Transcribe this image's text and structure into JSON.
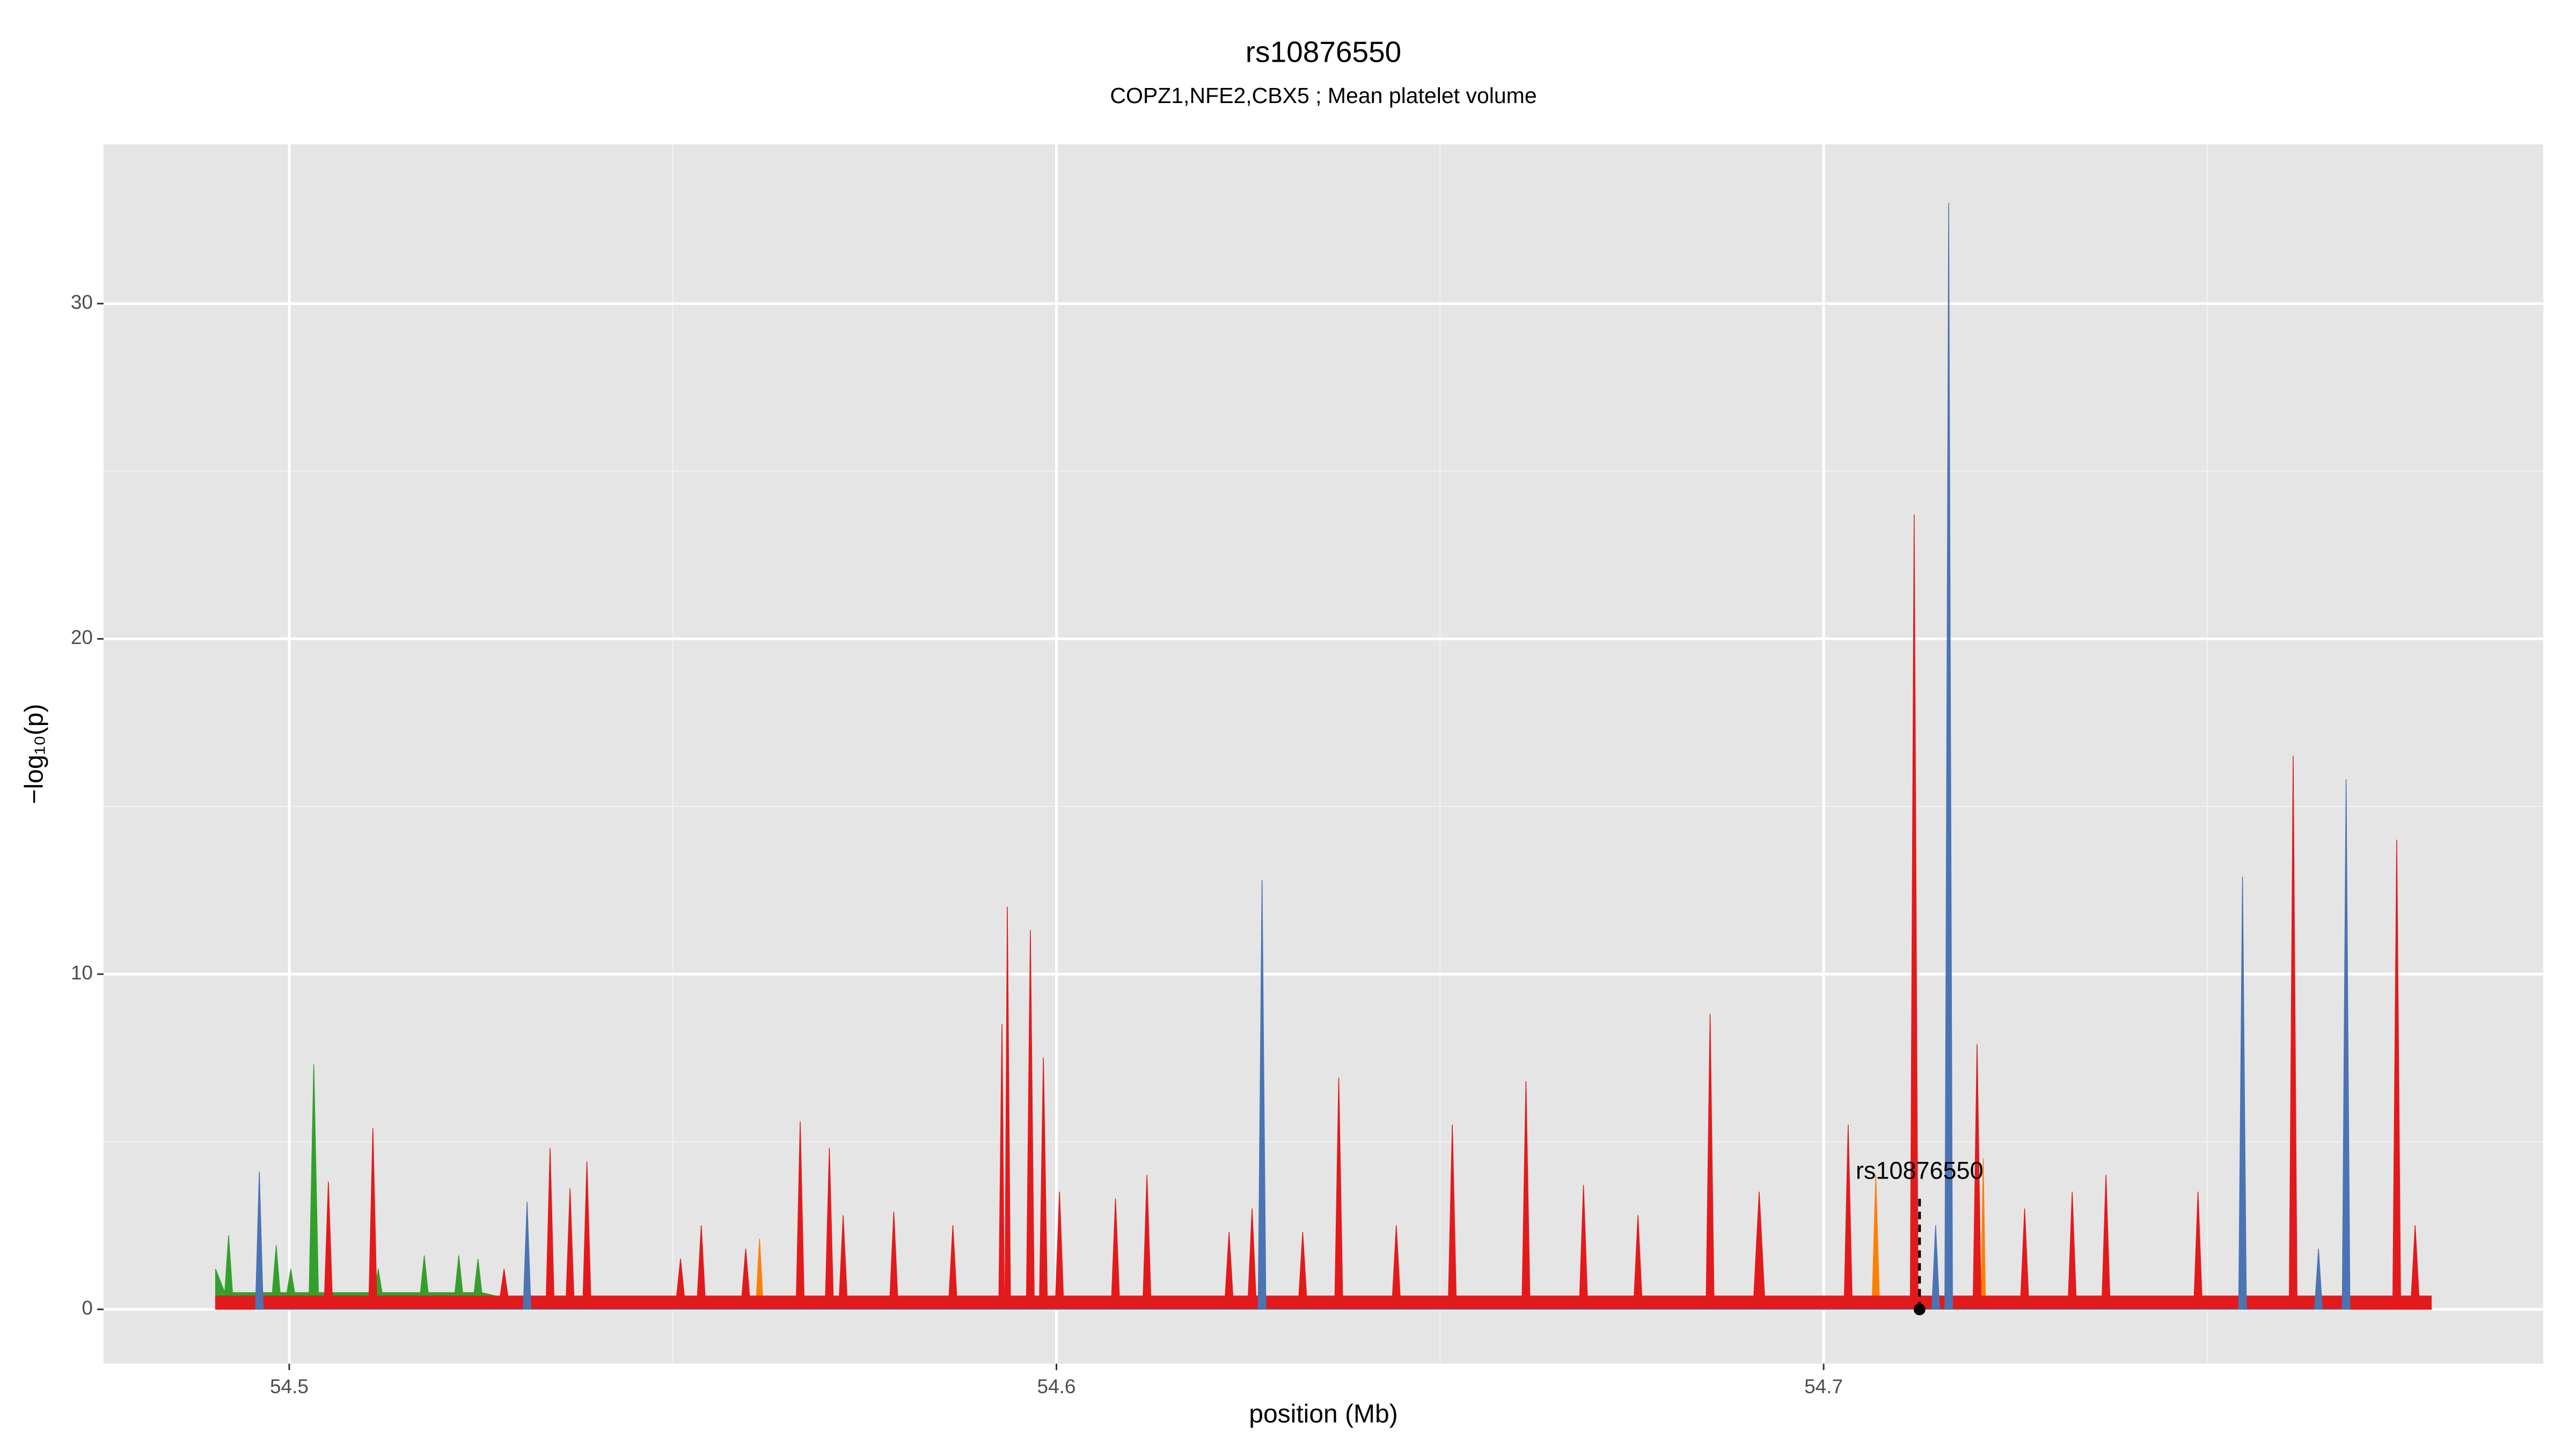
{
  "chart_data": {
    "type": "area",
    "title": "rs10876550",
    "subtitle": "COPZ1,NFE2,CBX5 ; Mean platelet volume",
    "xlabel": "position (Mb)",
    "ylabel": "−log₁₀(p)",
    "xlim": [
      54.4758,
      54.7938
    ],
    "ylim": [
      -1.62,
      34.75
    ],
    "xticks": [
      54.5,
      54.6,
      54.7
    ],
    "yticks": [
      0,
      10,
      20,
      30
    ],
    "x_minor_grid": [
      54.55,
      54.65,
      54.75
    ],
    "y_minor_grid": [
      5,
      15,
      25
    ],
    "grid": true,
    "series": [
      {
        "color": "#33a02c",
        "x": [
          54.4904,
          54.4916,
          54.4921,
          54.4926,
          54.4978,
          54.4983,
          54.4988,
          54.4997,
          54.5002,
          54.5007,
          54.5026,
          54.5032,
          54.5038,
          54.5111,
          54.5116,
          54.5121,
          54.5171,
          54.5176,
          54.5181,
          54.5216,
          54.5221,
          54.5226,
          54.5241,
          54.5246,
          54.5251,
          54.5287
        ],
        "values": [
          1.2,
          0.5,
          2.2,
          0.5,
          0.5,
          1.9,
          0.5,
          0.5,
          1.2,
          0.5,
          0.5,
          7.3,
          0.5,
          0.5,
          1.2,
          0.5,
          0.5,
          1.6,
          0.5,
          0.5,
          1.6,
          0.5,
          0.5,
          1.5,
          0.5,
          0.3
        ]
      },
      {
        "color": "#ff7f00",
        "x": [
          54.5608,
          54.5613,
          54.5618,
          54.7063,
          54.7068,
          54.7073,
          54.7205,
          54.7208,
          54.7211
        ],
        "values": [
          0,
          2.1,
          0,
          0,
          4.0,
          0,
          0,
          4.5,
          0
        ]
      },
      {
        "color": "#e31a1c",
        "x": [
          54.4904,
          54.5046,
          54.5051,
          54.5056,
          54.5104,
          54.5109,
          54.5114,
          54.5275,
          54.528,
          54.5285,
          54.5335,
          54.534,
          54.5345,
          54.5361,
          54.5366,
          54.5371,
          54.5383,
          54.5388,
          54.5393,
          54.5505,
          54.551,
          54.5515,
          54.5532,
          54.5537,
          54.5542,
          54.559,
          54.5595,
          54.56,
          54.5661,
          54.5666,
          54.5671,
          54.5699,
          54.5704,
          54.5709,
          54.5717,
          54.5722,
          54.5727,
          54.5783,
          54.5788,
          54.5793,
          54.586,
          54.5865,
          54.587,
          54.5925,
          54.5929,
          54.5932,
          54.5933,
          54.5936,
          54.594,
          54.5961,
          54.5966,
          54.5971,
          54.5978,
          54.5983,
          54.5988,
          54.5999,
          54.6004,
          54.6009,
          54.6072,
          54.6077,
          54.6082,
          54.6113,
          54.6118,
          54.6123,
          54.622,
          54.6225,
          54.623,
          54.625,
          54.6255,
          54.626,
          54.6316,
          54.6321,
          54.6326,
          54.6363,
          54.6368,
          54.6373,
          54.6438,
          54.6443,
          54.6448,
          54.6511,
          54.6516,
          54.6521,
          54.6607,
          54.6612,
          54.6617,
          54.6682,
          54.6687,
          54.6692,
          54.6753,
          54.6758,
          54.6763,
          54.6847,
          54.6852,
          54.6857,
          54.6909,
          54.6916,
          54.6923,
          54.7027,
          54.7032,
          54.7037,
          54.7113,
          54.7118,
          54.7123,
          54.7195,
          54.72,
          54.7205,
          54.7257,
          54.7262,
          54.7267,
          54.7319,
          54.7324,
          54.7329,
          54.7363,
          54.7368,
          54.7373,
          54.7483,
          54.7488,
          54.7493,
          54.7607,
          54.7612,
          54.7617,
          54.7742,
          54.7747,
          54.7752,
          54.7766,
          54.7771,
          54.7776,
          54.7792
        ],
        "values": [
          0.4,
          0.4,
          3.8,
          0.4,
          0.4,
          5.4,
          0.4,
          0.4,
          1.2,
          0.4,
          0.4,
          4.8,
          0.4,
          0.4,
          3.6,
          0.4,
          0.4,
          4.4,
          0.4,
          0.4,
          1.5,
          0.4,
          0.4,
          2.5,
          0.4,
          0.4,
          1.8,
          0.4,
          0.4,
          5.6,
          0.4,
          0.4,
          4.8,
          0.4,
          0.4,
          2.8,
          0.4,
          0.4,
          2.9,
          0.4,
          0.4,
          2.5,
          0.4,
          0.4,
          8.5,
          0.4,
          0.4,
          12.0,
          0.4,
          0.4,
          11.3,
          0.4,
          0.4,
          7.5,
          0.4,
          0.4,
          3.5,
          0.4,
          0.4,
          3.3,
          0.4,
          0.4,
          4.0,
          0.4,
          0.4,
          2.3,
          0.4,
          0.4,
          3.0,
          0.4,
          0.4,
          2.3,
          0.4,
          0.4,
          6.9,
          0.4,
          0.4,
          2.5,
          0.4,
          0.4,
          5.5,
          0.4,
          0.4,
          6.8,
          0.4,
          0.4,
          3.7,
          0.4,
          0.4,
          2.8,
          0.4,
          0.4,
          8.8,
          0.4,
          0.4,
          3.5,
          0.4,
          0.4,
          5.5,
          0.4,
          0.4,
          23.7,
          0.4,
          0.4,
          7.9,
          0.4,
          0.4,
          3.0,
          0.4,
          0.4,
          3.5,
          0.4,
          0.4,
          4.0,
          0.4,
          0.4,
          3.5,
          0.4,
          0.4,
          16.5,
          0.4,
          0.4,
          14.0,
          0.4,
          0.4,
          2.5,
          0.4,
          0.4
        ]
      },
      {
        "color": "#4a74b4",
        "x": [
          54.4956,
          54.4961,
          54.4966,
          54.5305,
          54.531,
          54.5315,
          54.6263,
          54.6268,
          54.6273,
          54.7141,
          54.7146,
          54.7151,
          54.7158,
          54.7163,
          54.7168,
          54.7541,
          54.7546,
          54.7551,
          54.764,
          54.7645,
          54.765,
          54.7676,
          54.7681,
          54.7686
        ],
        "values": [
          0,
          4.1,
          0,
          0,
          3.2,
          0,
          0,
          12.8,
          0,
          0,
          2.5,
          0,
          0,
          33.0,
          0,
          0,
          12.9,
          0,
          0,
          1.8,
          0,
          0,
          15.8,
          0
        ]
      }
    ],
    "annotation": {
      "text": "rs10876550",
      "x": 54.7125,
      "y": 0
    }
  }
}
